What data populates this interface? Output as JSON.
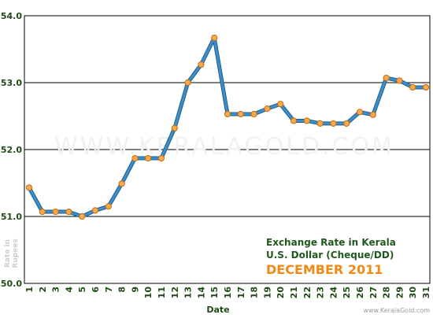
{
  "chart_data": {
    "type": "line",
    "x": [
      "1",
      "2",
      "3",
      "4",
      "5",
      "6",
      "7",
      "8",
      "9",
      "10",
      "11",
      "12",
      "13",
      "14",
      "15",
      "16",
      "17",
      "18",
      "19",
      "20",
      "21",
      "22",
      "23",
      "24",
      "25",
      "26",
      "27",
      "28",
      "29",
      "30",
      "31"
    ],
    "values": [
      51.43,
      51.07,
      51.07,
      51.07,
      51.0,
      51.09,
      51.15,
      51.49,
      51.87,
      51.87,
      51.87,
      52.32,
      53.0,
      53.27,
      53.67,
      52.53,
      52.53,
      52.53,
      52.61,
      52.68,
      52.43,
      52.43,
      52.39,
      52.39,
      52.39,
      52.56,
      52.52,
      53.07,
      53.03,
      52.93,
      52.93
    ],
    "yticks": [
      "50.0",
      "51.0",
      "52.0",
      "53.0",
      "54.0"
    ],
    "ylim": [
      50.0,
      54.0
    ],
    "xlabel": "Date",
    "ylabel": "Rate in Rupees",
    "grid": true,
    "title_lines": [
      "Exchange Rate in Kerala",
      "U.S. Dollar (Cheque/DD)"
    ],
    "period": "DECEMBER 2011",
    "watermark": "WWW.KERALAGOLD.COM",
    "footer": "www.KeralaGold.com",
    "colors": {
      "line": "#3d8ec9",
      "line_dark": "#1e5f8e",
      "marker_fill": "#f7a94b",
      "marker_stroke": "#c26c14",
      "title": "#1f5a1c",
      "period": "#f08a14",
      "axis_text": "#1f4a16"
    }
  }
}
